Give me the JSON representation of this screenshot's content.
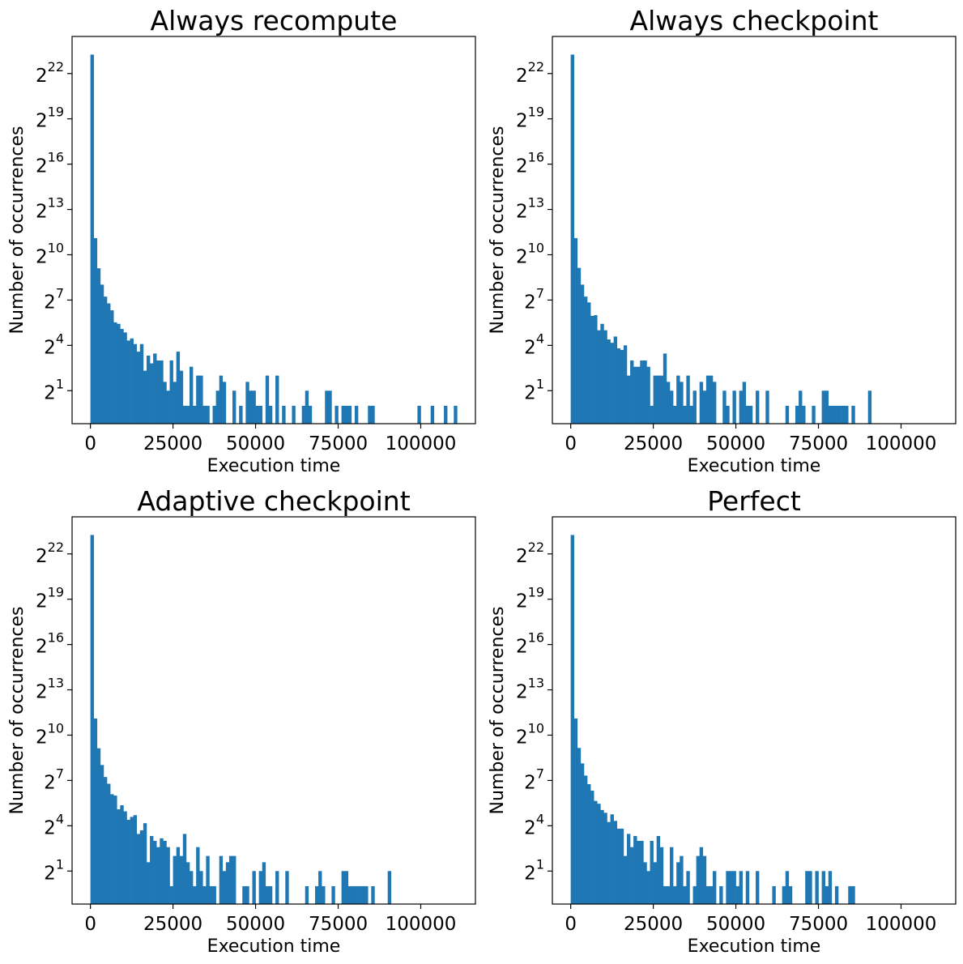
{
  "chart_data": [
    {
      "type": "bar",
      "title": "Always recompute",
      "xlabel": "Execution time",
      "ylabel": "Number of occurrences",
      "y_scale": "log2",
      "xlim": [
        -5550,
        116550
      ],
      "ylim": [
        0.44,
        23000000
      ],
      "x_ticks": [
        "0",
        "25000",
        "50000",
        "75000",
        "100000"
      ],
      "y_tick_exponents": [
        "1",
        "4",
        "7",
        "10",
        "13",
        "16",
        "19",
        "22"
      ],
      "y_tick_base": "2",
      "bin_start": 0,
      "bin_width": 1000,
      "counts": [
        10000000,
        2200,
        550,
        260,
        150,
        110,
        80,
        46,
        43,
        34,
        29,
        20,
        22,
        17,
        12,
        17,
        5,
        10,
        7,
        11,
        8,
        8,
        3,
        2,
        8,
        3,
        12,
        5,
        1,
        1,
        6,
        1,
        4,
        4,
        1,
        1,
        0,
        1,
        2,
        4,
        3,
        0,
        0,
        2,
        0,
        1,
        0,
        3,
        2,
        2,
        1,
        1,
        0,
        4,
        1,
        0,
        4,
        0,
        1,
        0,
        0,
        1,
        0,
        0,
        1,
        2,
        1,
        0,
        0,
        0,
        0,
        2,
        2,
        0,
        1,
        0,
        1,
        1,
        1,
        0,
        1,
        0,
        0,
        0,
        1,
        1,
        0,
        0,
        0,
        0,
        0,
        0,
        0,
        0,
        0,
        0,
        0,
        0,
        0,
        1,
        0,
        0,
        0,
        1,
        0,
        0,
        0,
        1,
        0,
        0,
        1
      ],
      "color": "#1f77b4",
      "grid": false
    },
    {
      "type": "bar",
      "title": "Always checkpoint",
      "xlabel": "Execution time",
      "ylabel": "Number of occurrences",
      "y_scale": "log2",
      "xlim": [
        -5550,
        116550
      ],
      "ylim": [
        0.44,
        23000000
      ],
      "x_ticks": [
        "0",
        "25000",
        "50000",
        "75000",
        "100000"
      ],
      "y_tick_exponents": [
        "1",
        "4",
        "7",
        "10",
        "13",
        "16",
        "19",
        "22"
      ],
      "y_tick_base": "2",
      "bin_start": 0,
      "bin_width": 1000,
      "counts": [
        10000000,
        2200,
        560,
        260,
        150,
        115,
        62,
        64,
        32,
        43,
        32,
        21,
        18,
        24,
        14,
        13,
        16,
        4,
        8,
        6,
        6,
        8,
        8,
        6,
        1,
        4,
        4,
        4,
        11,
        3,
        2,
        1,
        4,
        3,
        1,
        4,
        1,
        2,
        0,
        3,
        2,
        4,
        4,
        3,
        0,
        0,
        2,
        1,
        0,
        2,
        0,
        2,
        3,
        1,
        1,
        0,
        2,
        0,
        0,
        2,
        0,
        0,
        0,
        0,
        0,
        1,
        0,
        0,
        1,
        2,
        1,
        0,
        0,
        1,
        0,
        0,
        2,
        2,
        1,
        1,
        1,
        1,
        1,
        1,
        0,
        1,
        0,
        0,
        0,
        0,
        2,
        0,
        0,
        0,
        0,
        0,
        0,
        0,
        0,
        0,
        0,
        0,
        0,
        0,
        0,
        0,
        0,
        0,
        0,
        0,
        0
      ],
      "color": "#1f77b4",
      "grid": false
    },
    {
      "type": "bar",
      "title": "Adaptive checkpoint",
      "xlabel": "Execution time",
      "ylabel": "Number of occurrences",
      "y_scale": "log2",
      "xlim": [
        -5550,
        116550
      ],
      "ylim": [
        0.44,
        23000000
      ],
      "x_ticks": [
        "0",
        "25000",
        "50000",
        "75000",
        "100000"
      ],
      "y_tick_exponents": [
        "1",
        "4",
        "7",
        "10",
        "13",
        "16",
        "19",
        "22"
      ],
      "y_tick_base": "2",
      "bin_start": 0,
      "bin_width": 1000,
      "counts": [
        10000000,
        2200,
        560,
        260,
        150,
        110,
        68,
        64,
        34,
        41,
        31,
        21,
        24,
        26,
        11,
        13,
        18,
        3,
        10,
        8,
        6,
        9,
        8,
        6,
        1,
        4,
        6,
        4,
        11,
        3,
        2,
        1,
        6,
        2,
        1,
        4,
        1,
        1,
        0,
        4,
        2,
        3,
        4,
        4,
        0,
        0,
        1,
        1,
        0,
        2,
        0,
        2,
        3,
        1,
        1,
        0,
        2,
        0,
        0,
        2,
        0,
        0,
        0,
        0,
        0,
        1,
        0,
        0,
        1,
        2,
        1,
        0,
        0,
        1,
        0,
        0,
        2,
        2,
        1,
        1,
        1,
        1,
        1,
        1,
        0,
        1,
        0,
        0,
        0,
        0,
        2,
        0,
        0,
        0,
        0,
        0,
        0,
        0,
        0,
        0,
        0,
        0,
        0,
        0,
        0,
        0,
        0,
        0,
        0,
        0,
        0
      ],
      "color": "#1f77b4",
      "grid": false
    },
    {
      "type": "bar",
      "title": "Perfect",
      "xlabel": "Execution time",
      "ylabel": "Number of occurrences",
      "y_scale": "log2",
      "xlim": [
        -5550,
        116550
      ],
      "ylim": [
        0.44,
        23000000
      ],
      "x_ticks": [
        "0",
        "25000",
        "50000",
        "75000",
        "100000"
      ],
      "y_tick_exponents": [
        "1",
        "4",
        "7",
        "10",
        "13",
        "16",
        "19",
        "22"
      ],
      "y_tick_base": "2",
      "bin_start": 0,
      "bin_width": 1000,
      "counts": [
        10000000,
        2200,
        570,
        280,
        160,
        108,
        80,
        50,
        44,
        33,
        29,
        19,
        27,
        20,
        14,
        14,
        4,
        11,
        6,
        10,
        8,
        8,
        3,
        2,
        8,
        3,
        10,
        6,
        1,
        1,
        6,
        1,
        3,
        4,
        1,
        2,
        0,
        1,
        4,
        6,
        4,
        1,
        1,
        2,
        0,
        1,
        0,
        2,
        2,
        2,
        1,
        2,
        0,
        2,
        0,
        0,
        2,
        0,
        0,
        0,
        0,
        1,
        0,
        0,
        1,
        2,
        1,
        0,
        0,
        0,
        0,
        2,
        2,
        0,
        2,
        0,
        2,
        1,
        2,
        0,
        1,
        0,
        0,
        0,
        1,
        1,
        0,
        0,
        0,
        0,
        0,
        0,
        0,
        0,
        0,
        0,
        0,
        0,
        0,
        0,
        0,
        0,
        0,
        0,
        0,
        0,
        0,
        0,
        0,
        0,
        0
      ],
      "color": "#1f77b4",
      "grid": false
    }
  ]
}
